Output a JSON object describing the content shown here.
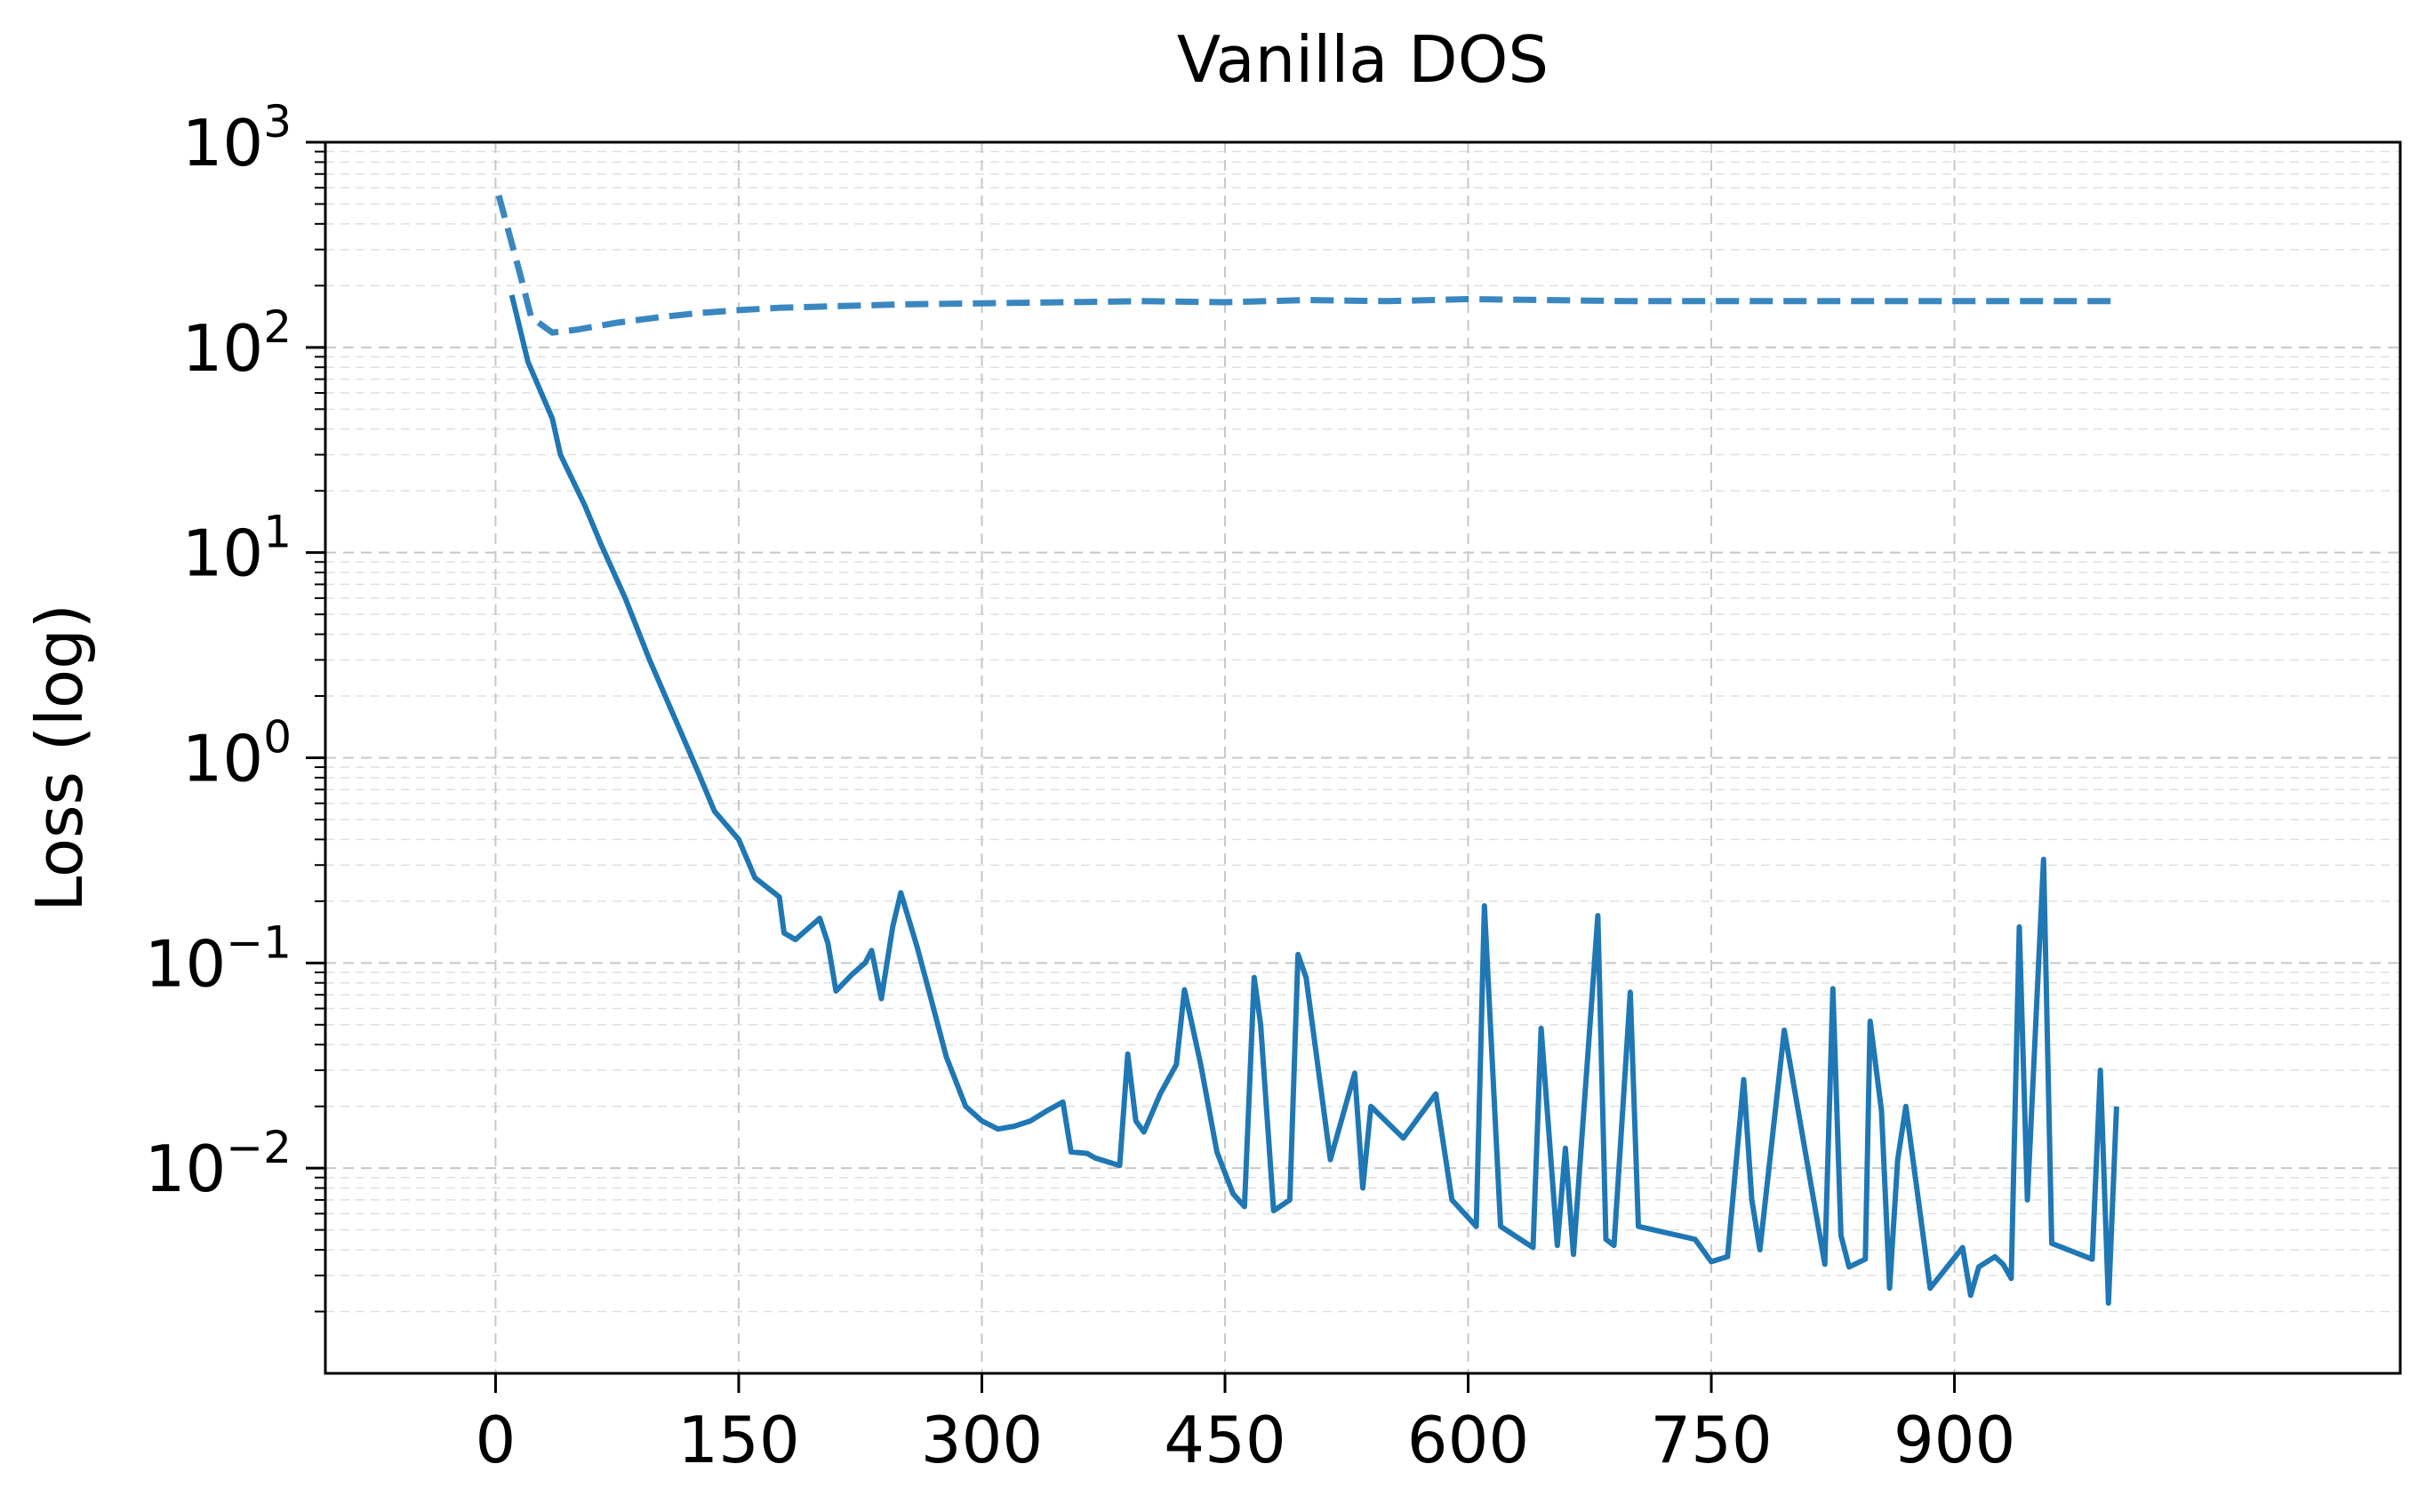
{
  "chart_data": {
    "type": "line",
    "title": "Vanilla DOS",
    "xlabel": "",
    "ylabel": "Loss (log)",
    "xlim": [
      -105,
      1175
    ],
    "ylim": [
      0.001,
      1000
    ],
    "yscale": "log",
    "grid": true,
    "xticks": [
      0,
      150,
      300,
      450,
      600,
      750,
      900
    ],
    "xtick_labels": [
      "0",
      "150",
      "300",
      "450",
      "600",
      "750",
      "900"
    ],
    "yticks": [
      0.01,
      0.1,
      1,
      10,
      100,
      1000
    ],
    "ytick_bases": [
      "10",
      "10",
      "10",
      "10",
      "10",
      "10"
    ],
    "ytick_exponents": [
      "−2",
      "−1",
      "0",
      "1",
      "2",
      "3"
    ],
    "colors": {
      "series": "#1f77b4",
      "dashed_series": "#3a87c0",
      "grid": "#c8c8c8",
      "axes": "#000000"
    },
    "series": [
      {
        "style": "solid",
        "color": "#1f77b4",
        "points": [
          [
            10,
            180
          ],
          [
            20,
            85
          ],
          [
            35,
            45
          ],
          [
            40,
            30
          ],
          [
            55,
            17
          ],
          [
            65,
            11
          ],
          [
            80,
            6
          ],
          [
            95,
            3
          ],
          [
            110,
            1.6
          ],
          [
            125,
            0.85
          ],
          [
            135,
            0.55
          ],
          [
            150,
            0.4
          ],
          [
            160,
            0.26
          ],
          [
            175,
            0.21
          ],
          [
            178,
            0.14
          ],
          [
            185,
            0.13
          ],
          [
            200,
            0.165
          ],
          [
            205,
            0.125
          ],
          [
            210,
            0.073
          ],
          [
            220,
            0.088
          ],
          [
            228,
            0.1
          ],
          [
            232,
            0.115
          ],
          [
            238,
            0.067
          ],
          [
            245,
            0.15
          ],
          [
            250,
            0.22
          ],
          [
            260,
            0.12
          ],
          [
            268,
            0.07
          ],
          [
            278,
            0.035
          ],
          [
            290,
            0.02
          ],
          [
            300,
            0.017
          ],
          [
            310,
            0.0155
          ],
          [
            320,
            0.016
          ],
          [
            330,
            0.017
          ],
          [
            340,
            0.019
          ],
          [
            350,
            0.021
          ],
          [
            355,
            0.012
          ],
          [
            365,
            0.0118
          ],
          [
            370,
            0.0112
          ],
          [
            385,
            0.0103
          ],
          [
            390,
            0.036
          ],
          [
            395,
            0.017
          ],
          [
            400,
            0.015
          ],
          [
            410,
            0.023
          ],
          [
            420,
            0.032
          ],
          [
            425,
            0.074
          ],
          [
            435,
            0.032
          ],
          [
            445,
            0.012
          ],
          [
            455,
            0.0075
          ],
          [
            462,
            0.0065
          ],
          [
            468,
            0.085
          ],
          [
            472,
            0.05
          ],
          [
            480,
            0.0062
          ],
          [
            490,
            0.007
          ],
          [
            495,
            0.11
          ],
          [
            500,
            0.085
          ],
          [
            515,
            0.011
          ],
          [
            530,
            0.029
          ],
          [
            535,
            0.008
          ],
          [
            540,
            0.02
          ],
          [
            560,
            0.014
          ],
          [
            580,
            0.023
          ],
          [
            590,
            0.007
          ],
          [
            605,
            0.0052
          ],
          [
            610,
            0.19
          ],
          [
            620,
            0.0052
          ],
          [
            640,
            0.0041
          ],
          [
            645,
            0.048
          ],
          [
            655,
            0.0042
          ],
          [
            660,
            0.0125
          ],
          [
            665,
            0.0038
          ],
          [
            680,
            0.17
          ],
          [
            685,
            0.0045
          ],
          [
            690,
            0.0042
          ],
          [
            700,
            0.072
          ],
          [
            705,
            0.0052
          ],
          [
            740,
            0.0045
          ],
          [
            750,
            0.0035
          ],
          [
            760,
            0.0037
          ],
          [
            770,
            0.027
          ],
          [
            775,
            0.007
          ],
          [
            780,
            0.004
          ],
          [
            795,
            0.047
          ],
          [
            820,
            0.0034
          ],
          [
            825,
            0.075
          ],
          [
            830,
            0.0047
          ],
          [
            835,
            0.0033
          ],
          [
            845,
            0.0036
          ],
          [
            848,
            0.052
          ],
          [
            855,
            0.019
          ],
          [
            860,
            0.0026
          ],
          [
            865,
            0.011
          ],
          [
            870,
            0.02
          ],
          [
            885,
            0.0026
          ],
          [
            905,
            0.0041
          ],
          [
            910,
            0.0024
          ],
          [
            915,
            0.0033
          ],
          [
            925,
            0.0037
          ],
          [
            930,
            0.0034
          ],
          [
            935,
            0.0029
          ],
          [
            940,
            0.15
          ],
          [
            945,
            0.007
          ],
          [
            955,
            0.32
          ],
          [
            960,
            0.0043
          ],
          [
            985,
            0.0036
          ],
          [
            990,
            0.03
          ],
          [
            995,
            0.0022
          ],
          [
            1000,
            0.02
          ]
        ]
      },
      {
        "style": "dashed",
        "color": "#3a87c0",
        "points": [
          [
            2,
            550
          ],
          [
            15,
            230
          ],
          [
            22,
            140
          ],
          [
            35,
            118
          ],
          [
            50,
            122
          ],
          [
            75,
            132
          ],
          [
            100,
            140
          ],
          [
            125,
            147
          ],
          [
            150,
            152
          ],
          [
            175,
            156
          ],
          [
            200,
            158
          ],
          [
            225,
            160
          ],
          [
            250,
            162
          ],
          [
            300,
            164
          ],
          [
            350,
            166
          ],
          [
            400,
            168
          ],
          [
            450,
            166
          ],
          [
            500,
            170
          ],
          [
            550,
            168
          ],
          [
            600,
            172
          ],
          [
            650,
            170
          ],
          [
            700,
            168
          ],
          [
            750,
            168
          ],
          [
            800,
            168
          ],
          [
            850,
            168
          ],
          [
            900,
            168
          ],
          [
            950,
            168
          ],
          [
            1000,
            168
          ]
        ]
      }
    ]
  }
}
